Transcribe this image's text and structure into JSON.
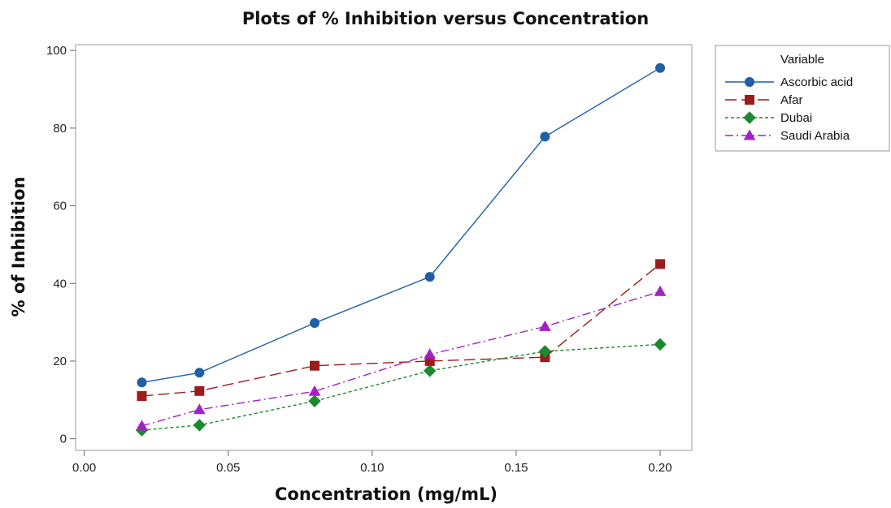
{
  "chart_data": {
    "type": "line",
    "title": "Plots of % Inhibition versus Concentration",
    "xlabel": "Concentration (mg/mL)",
    "ylabel": "% of Inhibition",
    "xlim": [
      -0.003,
      0.211
    ],
    "ylim": [
      -3,
      101.5
    ],
    "x_ticks": [
      0.0,
      0.05,
      0.1,
      0.15,
      0.2
    ],
    "x_tick_labels": [
      "0.00",
      "0.05",
      "0.10",
      "0.15",
      "0.20"
    ],
    "y_ticks": [
      0,
      20,
      40,
      60,
      80,
      100
    ],
    "y_tick_labels": [
      "0",
      "20",
      "40",
      "60",
      "80",
      "100"
    ],
    "grid": false,
    "legend": {
      "title": "Variable",
      "placement": "outside-right"
    },
    "x": [
      0.02,
      0.04,
      0.08,
      0.12,
      0.16,
      0.2
    ],
    "series": [
      {
        "name": "Ascorbic acid",
        "color": "#1f5fa8",
        "marker": "circle",
        "dash": "solid",
        "values": [
          14.5,
          17.0,
          29.8,
          41.7,
          77.8,
          95.5
        ]
      },
      {
        "name": "Afar",
        "color": "#9e1b1b",
        "marker": "square",
        "dash": "longdash",
        "values": [
          11.0,
          12.3,
          18.8,
          20.0,
          21.0,
          45.0
        ]
      },
      {
        "name": "Dubai",
        "color": "#1a8a2e",
        "marker": "diamond",
        "dash": "shortdash",
        "values": [
          2.2,
          3.5,
          9.7,
          17.5,
          22.5,
          24.3
        ]
      },
      {
        "name": "Saudi Arabia",
        "color": "#a321c4",
        "marker": "triangle",
        "dash": "dashdot",
        "values": [
          3.3,
          7.5,
          12.2,
          21.7,
          28.9,
          37.9
        ]
      }
    ]
  }
}
